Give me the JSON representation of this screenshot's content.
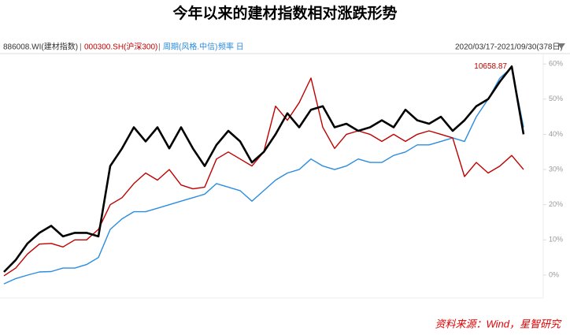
{
  "chart_data": {
    "type": "line",
    "title": "今年以来的建材指数相对涨跌形势",
    "date_range": "2020/03/17-2021/09/30(378日)",
    "source": "资料来源：Wind，星智研究",
    "annotation": "10658.87",
    "legend_extra": "频率 日",
    "ylim": [
      -6.5,
      62.5
    ],
    "yticks": [
      {
        "value": 0,
        "label": "0%"
      },
      {
        "value": 10,
        "label": "10%"
      },
      {
        "value": 20,
        "label": "20%"
      },
      {
        "value": 30,
        "label": "30%"
      },
      {
        "value": 40,
        "label": "40%"
      },
      {
        "value": 50,
        "label": "50%"
      },
      {
        "value": 60,
        "label": "60%"
      }
    ],
    "grid": false,
    "series": [
      {
        "name": "886008.WI(建材指数)",
        "color": "#000000",
        "values": [
          0.9,
          4.3,
          9,
          12,
          14,
          11,
          12,
          12,
          11,
          31,
          36,
          42,
          38,
          42,
          36,
          42,
          36,
          31,
          37,
          41,
          38,
          32,
          35,
          40,
          46,
          42,
          47,
          48,
          42,
          43,
          41,
          42,
          44,
          42,
          47,
          44,
          43,
          45,
          41,
          44,
          48,
          50,
          55,
          59.3,
          40
        ]
      },
      {
        "name": "000300.SH(沪深300)",
        "color": "#c00000",
        "values": [
          -0.2,
          2,
          6,
          8.8,
          9,
          8,
          10,
          10,
          13,
          20,
          22,
          26,
          29,
          27,
          30,
          25.6,
          24.5,
          25,
          33,
          35,
          33,
          31,
          35,
          48,
          44,
          49,
          56,
          42,
          36,
          40,
          41,
          40,
          38,
          40,
          38,
          40,
          41,
          40,
          39,
          28,
          32,
          29,
          31,
          34,
          30
        ]
      },
      {
        "name": "周期(风格.中信)",
        "color": "#2b8ce0",
        "values": [
          -2.5,
          -1,
          0,
          0.9,
          1,
          2,
          2,
          3,
          5,
          13,
          16,
          18,
          18,
          19,
          20,
          21,
          22,
          23,
          26,
          25,
          24,
          21,
          24,
          27,
          29,
          30,
          33,
          31,
          30,
          31,
          33,
          32,
          32,
          34,
          35,
          37,
          37,
          38,
          39,
          38,
          45,
          50,
          56,
          59,
          42
        ]
      }
    ]
  }
}
